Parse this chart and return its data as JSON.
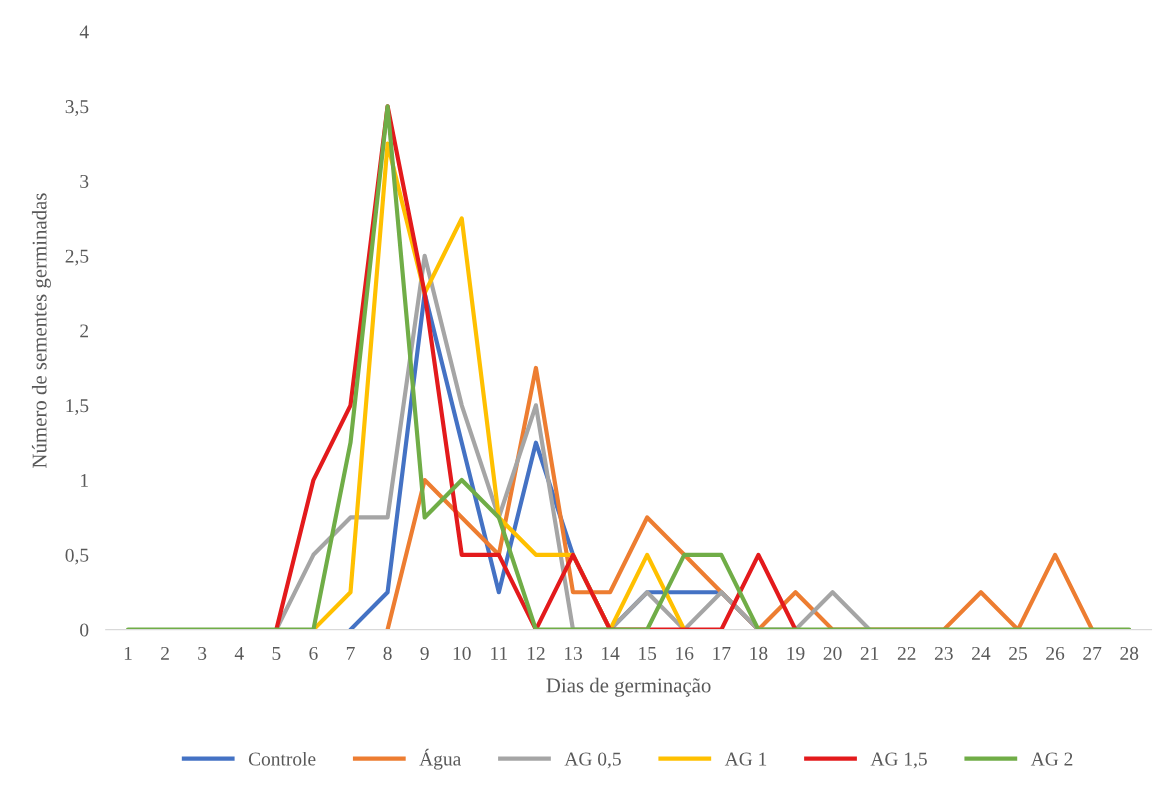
{
  "chart_data": {
    "type": "line",
    "xlabel": "Dias de germinação",
    "ylabel": "Número de sementes germinadas",
    "categories": [
      "1",
      "2",
      "3",
      "4",
      "5",
      "6",
      "7",
      "8",
      "9",
      "10",
      "11",
      "12",
      "13",
      "14",
      "15",
      "16",
      "17",
      "18",
      "19",
      "20",
      "21",
      "22",
      "23",
      "24",
      "25",
      "26",
      "27",
      "28"
    ],
    "ylim": [
      0,
      4
    ],
    "yticks": [
      0,
      {
        "value": 0.5,
        "label": "0,5"
      },
      1,
      {
        "value": 1.5,
        "label": "1,5"
      },
      2,
      {
        "value": 2.5,
        "label": "2,5"
      },
      3,
      {
        "value": 3.5,
        "label": "3,5"
      },
      4
    ],
    "grid": false,
    "legend": "bottom",
    "marker": "none",
    "line_style": "solid",
    "series": [
      {
        "name": "Controle",
        "color": "#4472c4",
        "values": [
          null,
          null,
          null,
          null,
          null,
          null,
          0,
          0.25,
          2.25,
          1.25,
          0.25,
          1.25,
          0.5,
          0,
          0.25,
          0.25,
          0.25,
          0,
          null,
          null,
          null,
          null,
          null,
          null,
          null,
          null,
          null,
          null
        ]
      },
      {
        "name": "Água",
        "color": "#ed7d31",
        "values": [
          null,
          null,
          null,
          null,
          null,
          null,
          null,
          0,
          1,
          0.75,
          0.5,
          1.75,
          0.25,
          0.25,
          0.75,
          0.5,
          0.25,
          0,
          0.25,
          0,
          0,
          0,
          0,
          0.25,
          0,
          0.5,
          0,
          null
        ]
      },
      {
        "name": "AG 0,5",
        "color": "#a5a5a5",
        "values": [
          null,
          null,
          null,
          null,
          0,
          0.5,
          0.75,
          0.75,
          2.5,
          1.5,
          0.75,
          1.5,
          0,
          0,
          0.25,
          0,
          0.25,
          0,
          0,
          0.25,
          0,
          null,
          null,
          null,
          null,
          null,
          null,
          null
        ]
      },
      {
        "name": "AG 1",
        "color": "#ffc000",
        "values": [
          null,
          null,
          null,
          null,
          null,
          0,
          0.25,
          3.25,
          2.25,
          2.75,
          0.75,
          0.5,
          0.5,
          0,
          0.5,
          0,
          null,
          null,
          null,
          null,
          null,
          null,
          null,
          null,
          null,
          null,
          null,
          null
        ]
      },
      {
        "name": "AG 1,5",
        "color": "#e31a1c",
        "values": [
          null,
          null,
          null,
          null,
          0,
          1,
          1.5,
          3.5,
          2.25,
          0.5,
          0.5,
          0,
          0.5,
          0,
          0,
          0,
          0,
          0.5,
          0,
          null,
          null,
          null,
          null,
          null,
          null,
          null,
          null,
          null
        ]
      },
      {
        "name": "AG 2",
        "color": "#70ad47",
        "values": [
          0,
          0,
          0,
          0,
          0,
          0,
          1.25,
          3.5,
          0.75,
          1,
          0.75,
          0,
          0,
          0,
          0,
          0.5,
          0.5,
          0,
          0,
          0,
          0,
          0,
          0,
          0,
          0,
          0,
          0,
          0
        ]
      }
    ]
  }
}
